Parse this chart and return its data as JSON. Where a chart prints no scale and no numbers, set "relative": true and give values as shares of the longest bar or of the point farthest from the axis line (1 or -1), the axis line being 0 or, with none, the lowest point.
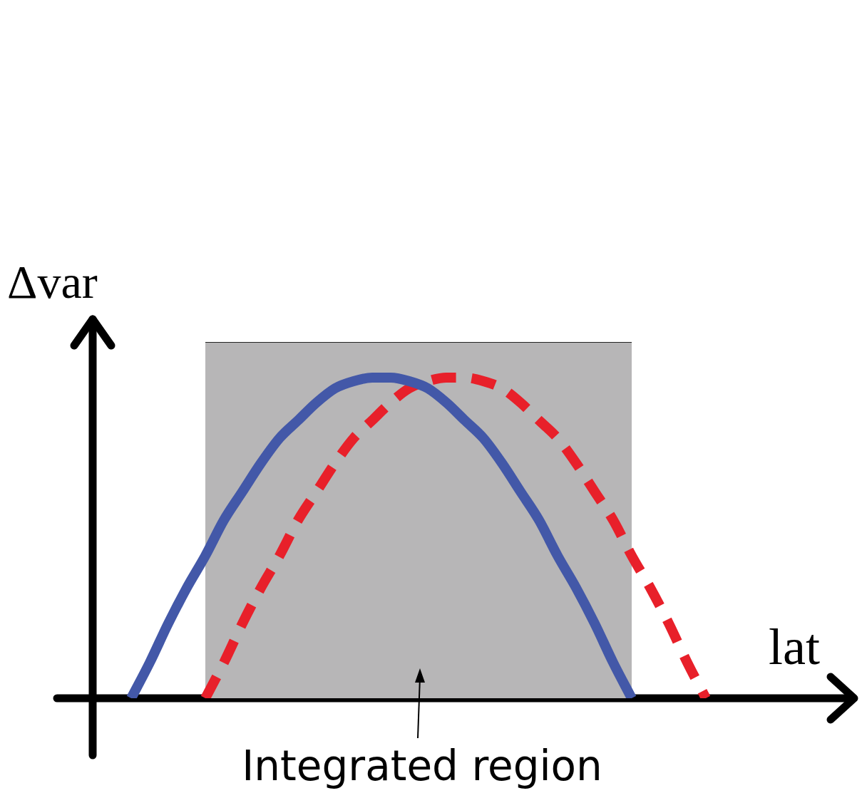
{
  "chart_data": {
    "type": "line",
    "relative": true,
    "xlabel": "lat",
    "ylabel": "Δvar",
    "annotations": [
      "Integrated region"
    ],
    "tick_labels": false,
    "grid": false,
    "legend": false,
    "marker": "none",
    "categories": [
      null,
      null,
      null,
      null,
      null,
      null,
      null,
      null,
      null,
      null,
      null,
      null,
      null,
      null,
      null,
      null,
      null,
      null,
      null,
      null,
      null,
      null,
      null,
      null,
      null,
      null,
      null,
      null,
      null,
      null,
      null,
      null,
      null,
      null,
      null,
      null,
      null,
      null,
      null,
      null,
      null
    ],
    "series": [
      {
        "type": "area",
        "color": "#b7b6b7",
        "values": [
          null,
          null,
          null,
          null,
          null,
          null,
          1,
          1,
          1,
          1,
          1,
          1,
          1,
          1,
          1,
          1,
          1,
          1,
          1,
          1,
          1,
          1,
          1,
          1,
          1,
          1,
          1,
          1,
          1,
          1,
          null,
          null,
          null,
          null,
          null,
          null,
          null,
          null,
          null,
          null,
          null
        ]
      },
      {
        "type": "line",
        "color": "#4358a8",
        "line_style": "solid",
        "values": [
          null,
          null,
          0,
          0.1,
          0.21,
          0.31,
          0.4,
          0.5,
          0.58,
          0.66,
          0.73,
          0.78,
          0.83,
          0.87,
          0.89,
          0.9,
          0.9,
          0.89,
          0.87,
          0.83,
          0.78,
          0.73,
          0.66,
          0.58,
          0.5,
          0.4,
          0.31,
          0.21,
          0.1,
          0,
          null,
          null,
          null,
          null,
          null,
          null,
          null,
          null,
          null,
          null,
          null
        ]
      },
      {
        "type": "line",
        "color": "#e8202a",
        "line_style": "dashed",
        "values": [
          null,
          null,
          null,
          null,
          null,
          null,
          0,
          0.1,
          0.21,
          0.31,
          0.4,
          0.5,
          0.58,
          0.66,
          0.73,
          0.78,
          0.83,
          0.87,
          0.89,
          0.9,
          0.9,
          0.89,
          0.87,
          0.83,
          0.78,
          0.73,
          0.66,
          0.58,
          0.5,
          0.4,
          0.31,
          0.21,
          0.1,
          0,
          null,
          null,
          null,
          null,
          null,
          null,
          null
        ]
      }
    ]
  }
}
